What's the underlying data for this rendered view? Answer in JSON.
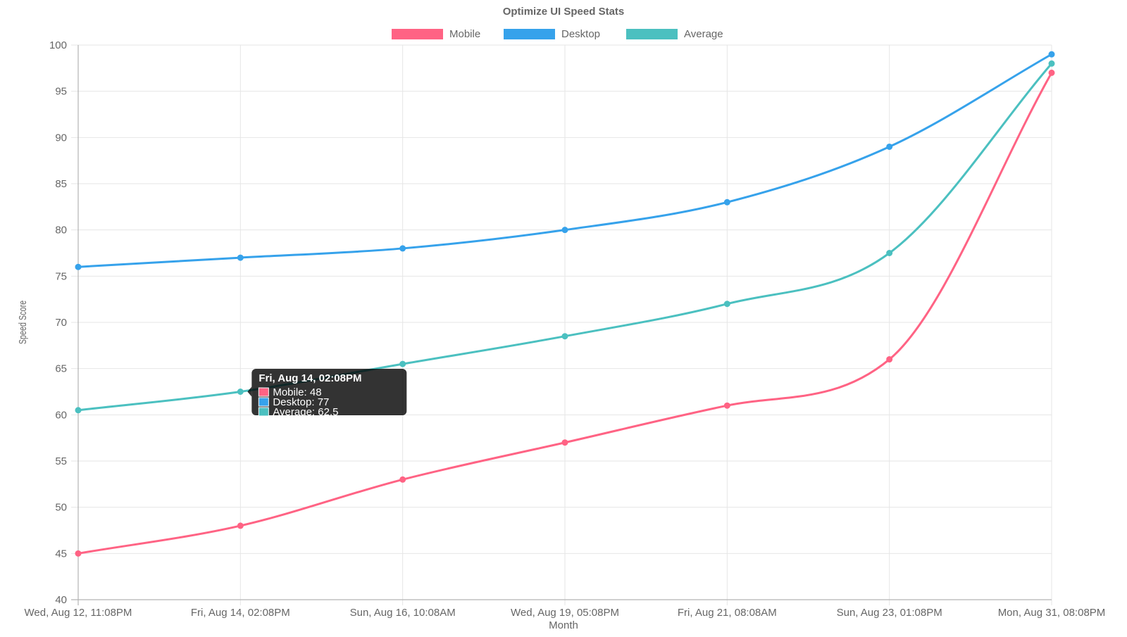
{
  "chart_data": {
    "type": "line",
    "title": "Optimize UI Speed Stats",
    "xlabel": "Month",
    "ylabel": "Speed Score",
    "ylim": [
      40,
      100
    ],
    "y_ticks": [
      40,
      45,
      50,
      55,
      60,
      65,
      70,
      75,
      80,
      85,
      90,
      95,
      100
    ],
    "grid": true,
    "legend_position": "top-center",
    "categories": [
      "Wed, Aug 12, 11:08PM",
      "Fri, Aug 14, 02:08PM",
      "Sun, Aug 16, 10:08AM",
      "Wed, Aug 19, 05:08PM",
      "Fri, Aug 21, 08:08AM",
      "Sun, Aug 23, 01:08PM",
      "Mon, Aug 31, 08:08PM"
    ],
    "series": [
      {
        "name": "Mobile",
        "color": "#ff6384",
        "values": [
          45,
          48,
          53,
          57,
          61,
          66,
          97
        ]
      },
      {
        "name": "Desktop",
        "color": "#36a2eb",
        "values": [
          76,
          77,
          78,
          80,
          83,
          89,
          99
        ]
      },
      {
        "name": "Average",
        "color": "#4bc0c0",
        "values": [
          60.5,
          62.5,
          65.5,
          68.5,
          72,
          77.5,
          98
        ]
      }
    ],
    "tooltip": {
      "category_index": 1,
      "title": "Fri, Aug 14, 02:08PM",
      "items": [
        {
          "label": "Mobile: 48",
          "color": "#ff6384"
        },
        {
          "label": "Desktop: 77",
          "color": "#36a2eb"
        },
        {
          "label": "Average: 62.5",
          "color": "#4bc0c0"
        }
      ]
    }
  }
}
